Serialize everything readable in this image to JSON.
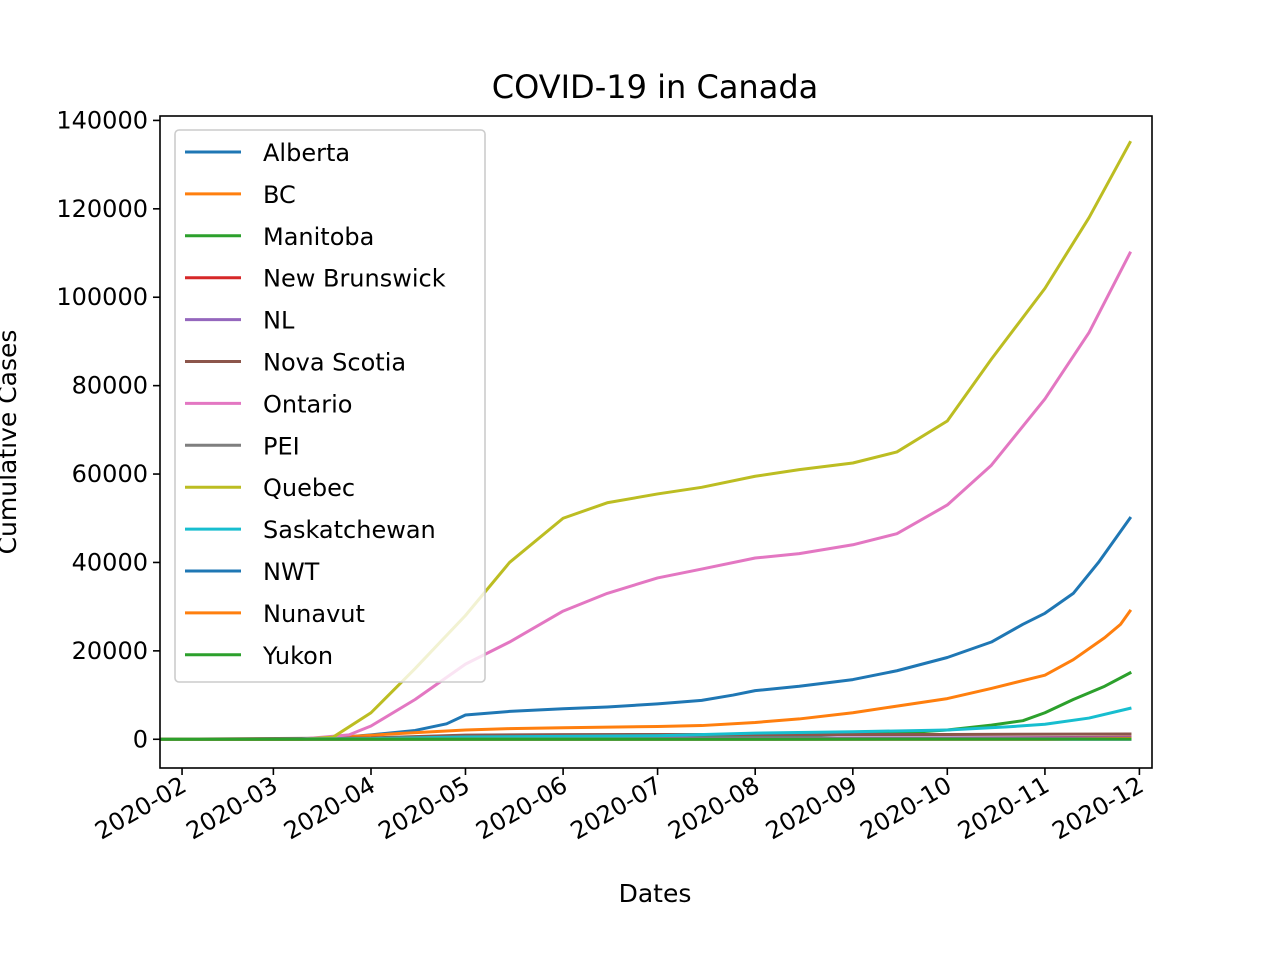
{
  "chart_data": {
    "type": "line",
    "title": "COVID-19 in Canada",
    "xlabel": "Dates",
    "ylabel": "Cumulative Cases",
    "x_ticks": [
      "2020-02",
      "2020-03",
      "2020-04",
      "2020-05",
      "2020-06",
      "2020-07",
      "2020-08",
      "2020-09",
      "2020-10",
      "2020-11",
      "2020-12"
    ],
    "y_ticks": [
      "0",
      "20000",
      "40000",
      "60000",
      "80000",
      "100000",
      "120000",
      "140000"
    ],
    "x_range": [
      "2020-01-25",
      "2020-12-05"
    ],
    "ylim": [
      -6500,
      141000
    ],
    "grid": false,
    "legend_position": "upper-left",
    "series": [
      {
        "name": "Alberta",
        "color": "#1f77b4",
        "points": [
          [
            "2020-01-25",
            0
          ],
          [
            "2020-03-05",
            0
          ],
          [
            "2020-03-20",
            300
          ],
          [
            "2020-04-01",
            1000
          ],
          [
            "2020-04-15",
            2000
          ],
          [
            "2020-04-25",
            3500
          ],
          [
            "2020-05-01",
            5500
          ],
          [
            "2020-05-15",
            6300
          ],
          [
            "2020-06-01",
            6900
          ],
          [
            "2020-06-15",
            7300
          ],
          [
            "2020-07-01",
            8000
          ],
          [
            "2020-07-15",
            8800
          ],
          [
            "2020-07-25",
            10000
          ],
          [
            "2020-08-01",
            11000
          ],
          [
            "2020-08-15",
            12000
          ],
          [
            "2020-09-01",
            13500
          ],
          [
            "2020-09-15",
            15500
          ],
          [
            "2020-10-01",
            18500
          ],
          [
            "2020-10-15",
            22000
          ],
          [
            "2020-10-25",
            26000
          ],
          [
            "2020-11-01",
            28500
          ],
          [
            "2020-11-10",
            33000
          ],
          [
            "2020-11-18",
            40000
          ],
          [
            "2020-11-25",
            47000
          ],
          [
            "2020-11-28",
            50000
          ]
        ]
      },
      {
        "name": "BC",
        "color": "#ff7f0e",
        "points": [
          [
            "2020-01-25",
            0
          ],
          [
            "2020-03-10",
            100
          ],
          [
            "2020-03-25",
            600
          ],
          [
            "2020-04-10",
            1300
          ],
          [
            "2020-05-01",
            2100
          ],
          [
            "2020-05-15",
            2400
          ],
          [
            "2020-06-01",
            2600
          ],
          [
            "2020-07-01",
            2900
          ],
          [
            "2020-07-15",
            3100
          ],
          [
            "2020-08-01",
            3800
          ],
          [
            "2020-08-15",
            4600
          ],
          [
            "2020-09-01",
            6000
          ],
          [
            "2020-09-15",
            7500
          ],
          [
            "2020-10-01",
            9200
          ],
          [
            "2020-10-15",
            11500
          ],
          [
            "2020-11-01",
            14500
          ],
          [
            "2020-11-10",
            18000
          ],
          [
            "2020-11-20",
            23000
          ],
          [
            "2020-11-25",
            26000
          ],
          [
            "2020-11-28",
            29000
          ]
        ]
      },
      {
        "name": "Manitoba",
        "color": "#2ca02c",
        "points": [
          [
            "2020-01-25",
            0
          ],
          [
            "2020-04-01",
            100
          ],
          [
            "2020-05-01",
            280
          ],
          [
            "2020-07-01",
            330
          ],
          [
            "2020-08-01",
            500
          ],
          [
            "2020-09-01",
            1200
          ],
          [
            "2020-09-20",
            1600
          ],
          [
            "2020-10-01",
            2100
          ],
          [
            "2020-10-15",
            3200
          ],
          [
            "2020-10-25",
            4200
          ],
          [
            "2020-11-01",
            6000
          ],
          [
            "2020-11-10",
            9000
          ],
          [
            "2020-11-20",
            12000
          ],
          [
            "2020-11-28",
            15000
          ]
        ]
      },
      {
        "name": "New Brunswick",
        "color": "#d62728",
        "points": [
          [
            "2020-01-25",
            0
          ],
          [
            "2020-04-01",
            70
          ],
          [
            "2020-05-01",
            120
          ],
          [
            "2020-07-01",
            170
          ],
          [
            "2020-10-01",
            300
          ],
          [
            "2020-11-28",
            450
          ]
        ]
      },
      {
        "name": "NL",
        "color": "#9467bd",
        "points": [
          [
            "2020-01-25",
            0
          ],
          [
            "2020-04-01",
            150
          ],
          [
            "2020-05-01",
            260
          ],
          [
            "2020-11-28",
            340
          ]
        ]
      },
      {
        "name": "Nova Scotia",
        "color": "#8c564b",
        "points": [
          [
            "2020-01-25",
            0
          ],
          [
            "2020-04-01",
            300
          ],
          [
            "2020-05-01",
            950
          ],
          [
            "2020-06-01",
            1060
          ],
          [
            "2020-10-01",
            1090
          ],
          [
            "2020-11-28",
            1200
          ]
        ]
      },
      {
        "name": "Ontario",
        "color": "#e377c2",
        "points": [
          [
            "2020-01-25",
            0
          ],
          [
            "2020-03-10",
            50
          ],
          [
            "2020-03-25",
            1000
          ],
          [
            "2020-04-01",
            3000
          ],
          [
            "2020-04-15",
            9000
          ],
          [
            "2020-05-01",
            17000
          ],
          [
            "2020-05-15",
            22000
          ],
          [
            "2020-06-01",
            29000
          ],
          [
            "2020-06-15",
            33000
          ],
          [
            "2020-07-01",
            36500
          ],
          [
            "2020-07-15",
            38500
          ],
          [
            "2020-08-01",
            41000
          ],
          [
            "2020-08-15",
            42000
          ],
          [
            "2020-09-01",
            44000
          ],
          [
            "2020-09-15",
            46500
          ],
          [
            "2020-10-01",
            53000
          ],
          [
            "2020-10-15",
            62000
          ],
          [
            "2020-11-01",
            77000
          ],
          [
            "2020-11-15",
            92000
          ],
          [
            "2020-11-28",
            110000
          ]
        ]
      },
      {
        "name": "PEI",
        "color": "#7f7f7f",
        "points": [
          [
            "2020-01-25",
            0
          ],
          [
            "2020-04-01",
            20
          ],
          [
            "2020-11-28",
            70
          ]
        ]
      },
      {
        "name": "Quebec",
        "color": "#bcbd22",
        "points": [
          [
            "2020-01-25",
            0
          ],
          [
            "2020-03-10",
            0
          ],
          [
            "2020-03-20",
            500
          ],
          [
            "2020-04-01",
            6000
          ],
          [
            "2020-04-15",
            16000
          ],
          [
            "2020-05-01",
            28000
          ],
          [
            "2020-05-15",
            40000
          ],
          [
            "2020-06-01",
            50000
          ],
          [
            "2020-06-15",
            53500
          ],
          [
            "2020-07-01",
            55500
          ],
          [
            "2020-07-15",
            57000
          ],
          [
            "2020-08-01",
            59500
          ],
          [
            "2020-08-15",
            61000
          ],
          [
            "2020-09-01",
            62500
          ],
          [
            "2020-09-15",
            65000
          ],
          [
            "2020-10-01",
            72000
          ],
          [
            "2020-10-15",
            86000
          ],
          [
            "2020-11-01",
            102000
          ],
          [
            "2020-11-15",
            118000
          ],
          [
            "2020-11-28",
            135000
          ]
        ]
      },
      {
        "name": "Saskatchewan",
        "color": "#17becf",
        "points": [
          [
            "2020-01-25",
            0
          ],
          [
            "2020-04-01",
            150
          ],
          [
            "2020-05-01",
            500
          ],
          [
            "2020-07-01",
            800
          ],
          [
            "2020-08-01",
            1400
          ],
          [
            "2020-09-01",
            1700
          ],
          [
            "2020-10-01",
            2100
          ],
          [
            "2020-10-20",
            2800
          ],
          [
            "2020-11-01",
            3400
          ],
          [
            "2020-11-15",
            4800
          ],
          [
            "2020-11-28",
            7000
          ]
        ]
      },
      {
        "name": "NWT",
        "color": "#1f77b4",
        "points": [
          [
            "2020-01-25",
            0
          ],
          [
            "2020-04-01",
            5
          ],
          [
            "2020-11-28",
            15
          ]
        ]
      },
      {
        "name": "Nunavut",
        "color": "#ff7f0e",
        "points": [
          [
            "2020-01-25",
            0
          ],
          [
            "2020-11-01",
            0
          ],
          [
            "2020-11-28",
            180
          ]
        ]
      },
      {
        "name": "Yukon",
        "color": "#2ca02c",
        "points": [
          [
            "2020-01-25",
            0
          ],
          [
            "2020-04-01",
            8
          ],
          [
            "2020-11-28",
            25
          ]
        ]
      }
    ]
  }
}
